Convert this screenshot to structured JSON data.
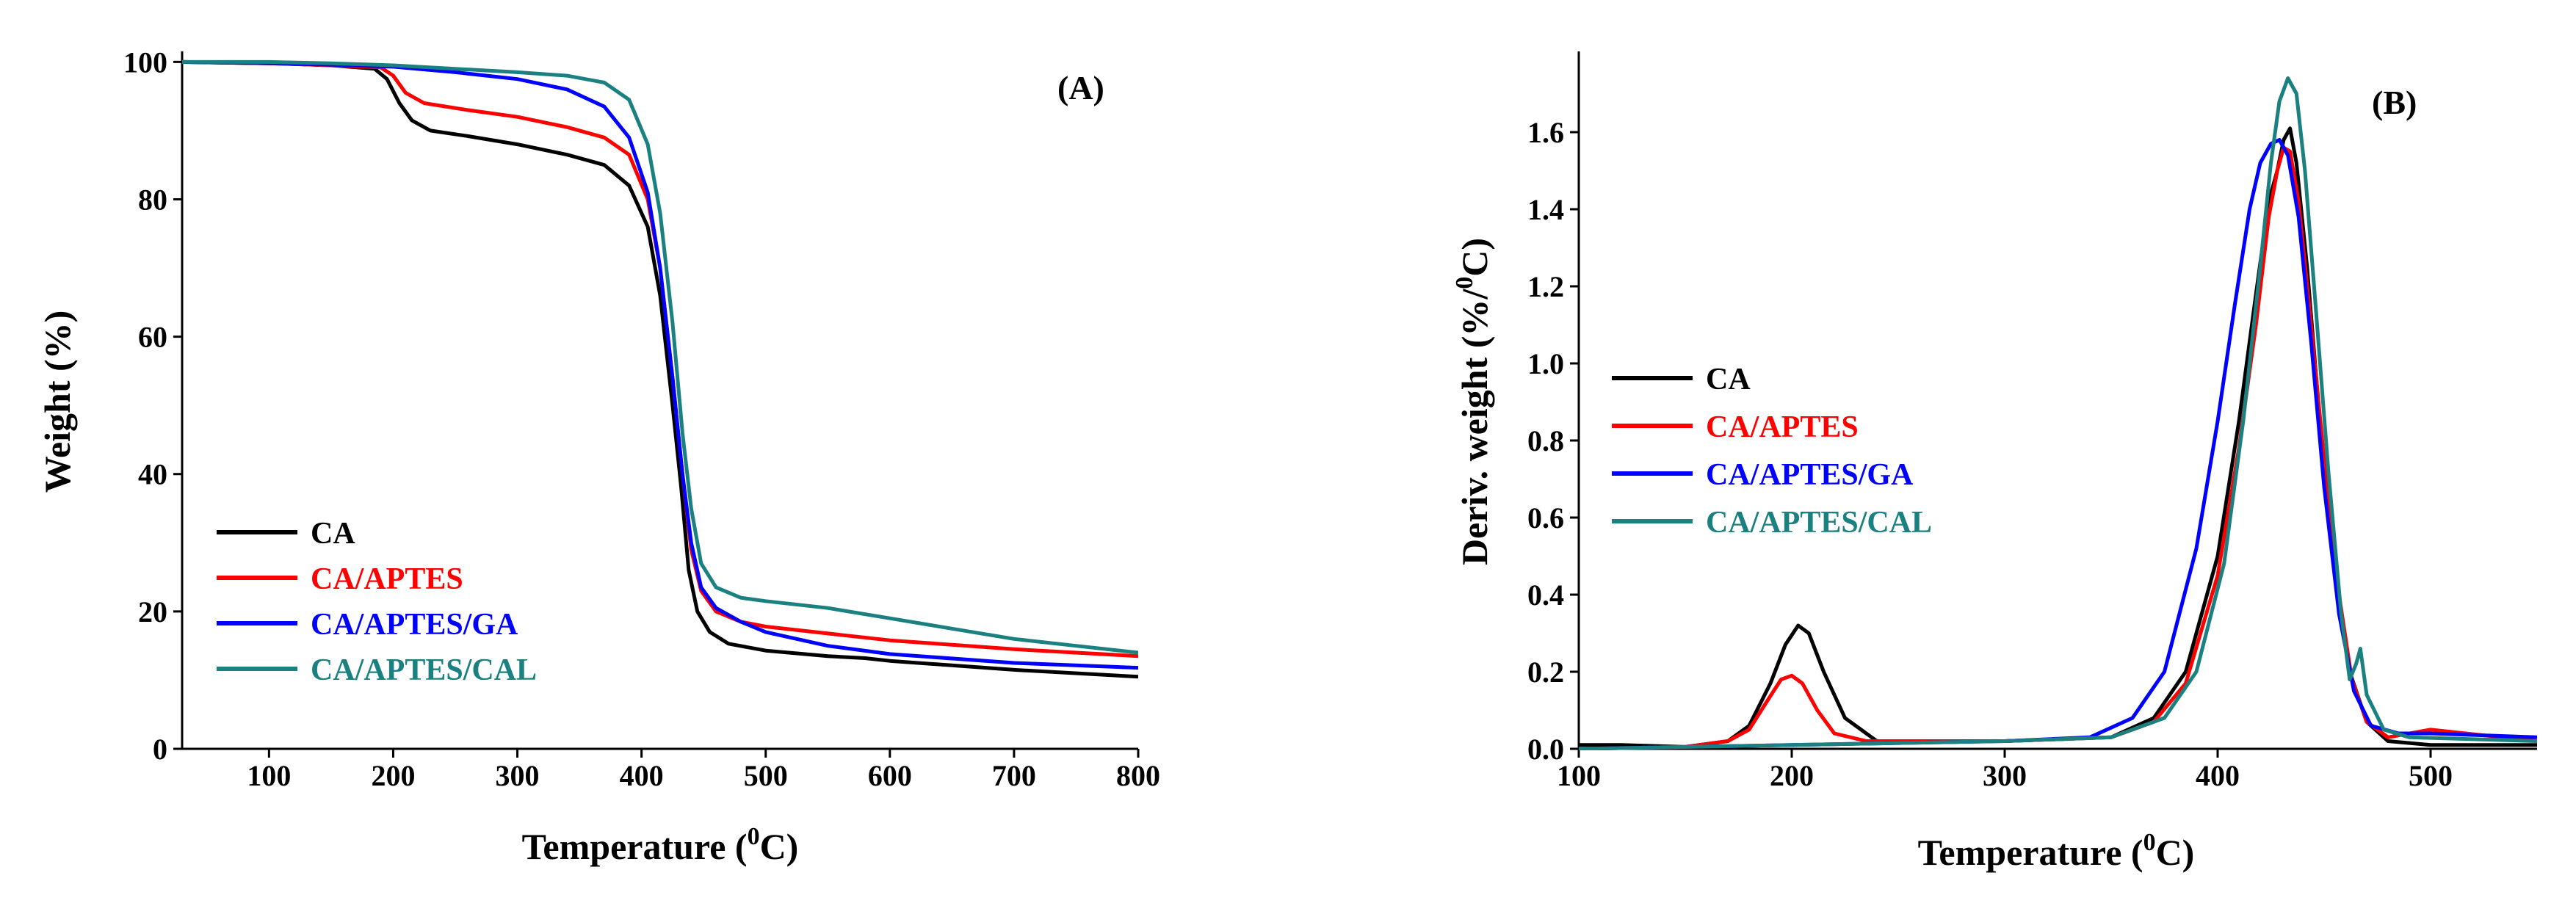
{
  "chart_data": [
    {
      "type": "line",
      "panel_label": "(A)",
      "xlabel": "Temperature (",
      "xlabel_sup": "0",
      "xlabel_suffix": "C)",
      "ylabel": "Weight (%)",
      "xlim": [
        30,
        800
      ],
      "ylim": [
        0,
        101
      ],
      "xticks": [
        100,
        200,
        300,
        400,
        500,
        600,
        700,
        800
      ],
      "yticks": [
        0,
        20,
        40,
        60,
        80,
        100
      ],
      "legend_position": "bottom-left",
      "series": [
        {
          "name": "CA",
          "color": "#000000",
          "points": [
            [
              30,
              100
            ],
            [
              100,
              99.8
            ],
            [
              150,
              99.5
            ],
            [
              185,
              99.0
            ],
            [
              195,
              97.5
            ],
            [
              205,
              94.0
            ],
            [
              215,
              91.5
            ],
            [
              230,
              90.0
            ],
            [
              260,
              89.2
            ],
            [
              300,
              88.0
            ],
            [
              340,
              86.5
            ],
            [
              370,
              85.0
            ],
            [
              390,
              82.0
            ],
            [
              405,
              76.0
            ],
            [
              415,
              66.0
            ],
            [
              425,
              50.0
            ],
            [
              432,
              38.0
            ],
            [
              438,
              26.0
            ],
            [
              445,
              20.0
            ],
            [
              455,
              17.0
            ],
            [
              470,
              15.3
            ],
            [
              500,
              14.3
            ],
            [
              550,
              13.5
            ],
            [
              580,
              13.2
            ],
            [
              600,
              12.8
            ],
            [
              700,
              11.5
            ],
            [
              800,
              10.5
            ]
          ]
        },
        {
          "name": "CA/APTES",
          "color": "#ff0000",
          "points": [
            [
              30,
              100
            ],
            [
              100,
              99.8
            ],
            [
              150,
              99.5
            ],
            [
              190,
              99.2
            ],
            [
              200,
              98.0
            ],
            [
              210,
              95.5
            ],
            [
              225,
              94.0
            ],
            [
              260,
              93.0
            ],
            [
              300,
              92.0
            ],
            [
              340,
              90.5
            ],
            [
              370,
              89.0
            ],
            [
              390,
              86.5
            ],
            [
              405,
              80.0
            ],
            [
              415,
              70.0
            ],
            [
              425,
              54.0
            ],
            [
              433,
              40.0
            ],
            [
              440,
              29.0
            ],
            [
              448,
              23.0
            ],
            [
              460,
              20.0
            ],
            [
              480,
              18.5
            ],
            [
              500,
              17.8
            ],
            [
              600,
              15.8
            ],
            [
              700,
              14.5
            ],
            [
              800,
              13.5
            ]
          ]
        },
        {
          "name": "CA/APTES/GA",
          "color": "#0000ff",
          "points": [
            [
              30,
              100
            ],
            [
              100,
              99.8
            ],
            [
              150,
              99.6
            ],
            [
              200,
              99.3
            ],
            [
              250,
              98.5
            ],
            [
              300,
              97.5
            ],
            [
              340,
              96.0
            ],
            [
              370,
              93.5
            ],
            [
              390,
              89.0
            ],
            [
              405,
              81.0
            ],
            [
              415,
              70.0
            ],
            [
              425,
              54.0
            ],
            [
              433,
              40.0
            ],
            [
              440,
              30.0
            ],
            [
              448,
              23.5
            ],
            [
              460,
              20.5
            ],
            [
              480,
              18.5
            ],
            [
              500,
              17.0
            ],
            [
              550,
              15.0
            ],
            [
              600,
              13.8
            ],
            [
              700,
              12.5
            ],
            [
              800,
              11.8
            ]
          ]
        },
        {
          "name": "CA/APTES/CAL",
          "color": "#1a8080",
          "points": [
            [
              30,
              100
            ],
            [
              100,
              100
            ],
            [
              150,
              99.8
            ],
            [
              200,
              99.5
            ],
            [
              250,
              99.0
            ],
            [
              300,
              98.5
            ],
            [
              340,
              98.0
            ],
            [
              370,
              97.0
            ],
            [
              390,
              94.5
            ],
            [
              405,
              88.0
            ],
            [
              415,
              78.0
            ],
            [
              425,
              62.0
            ],
            [
              433,
              46.0
            ],
            [
              440,
              35.0
            ],
            [
              448,
              27.0
            ],
            [
              460,
              23.5
            ],
            [
              480,
              22.0
            ],
            [
              500,
              21.5
            ],
            [
              550,
              20.5
            ],
            [
              600,
              19.0
            ],
            [
              650,
              17.5
            ],
            [
              700,
              16.0
            ],
            [
              750,
              15.0
            ],
            [
              800,
              14.0
            ]
          ]
        }
      ]
    },
    {
      "type": "line",
      "panel_label": "(B)",
      "xlabel": "Temperature (",
      "xlabel_sup": "0",
      "xlabel_suffix": "C)",
      "ylabel": "Deriv. weight (%/",
      "ylabel_sup": "0",
      "ylabel_suffix": "C)",
      "xlim": [
        100,
        550
      ],
      "ylim": [
        0,
        1.8
      ],
      "xticks": [
        100,
        200,
        300,
        400,
        500
      ],
      "yticks": [
        0.0,
        0.2,
        0.4,
        0.6,
        0.8,
        1.0,
        1.2,
        1.4,
        1.6
      ],
      "ytick_labels": [
        "0.0",
        "0.2",
        "0.4",
        "0.6",
        "0.8",
        "1.0",
        "1.2",
        "1.4",
        "1.6"
      ],
      "legend_position": "middle-left",
      "series": [
        {
          "name": "CA",
          "color": "#000000",
          "points": [
            [
              100,
              0.01
            ],
            [
              120,
              0.01
            ],
            [
              150,
              0.005
            ],
            [
              170,
              0.02
            ],
            [
              180,
              0.06
            ],
            [
              190,
              0.17
            ],
            [
              197,
              0.27
            ],
            [
              203,
              0.32
            ],
            [
              208,
              0.3
            ],
            [
              215,
              0.2
            ],
            [
              225,
              0.08
            ],
            [
              240,
              0.02
            ],
            [
              300,
              0.02
            ],
            [
              350,
              0.03
            ],
            [
              370,
              0.08
            ],
            [
              385,
              0.2
            ],
            [
              400,
              0.5
            ],
            [
              410,
              0.85
            ],
            [
              418,
              1.18
            ],
            [
              424,
              1.42
            ],
            [
              428,
              1.5
            ],
            [
              431,
              1.58
            ],
            [
              434,
              1.61
            ],
            [
              437,
              1.52
            ],
            [
              442,
              1.25
            ],
            [
              448,
              0.85
            ],
            [
              455,
              0.45
            ],
            [
              462,
              0.2
            ],
            [
              470,
              0.07
            ],
            [
              480,
              0.02
            ],
            [
              500,
              0.01
            ],
            [
              550,
              0.01
            ]
          ]
        },
        {
          "name": "CA/APTES",
          "color": "#ff0000",
          "points": [
            [
              100,
              0.0
            ],
            [
              150,
              0.005
            ],
            [
              170,
              0.02
            ],
            [
              180,
              0.05
            ],
            [
              188,
              0.12
            ],
            [
              195,
              0.18
            ],
            [
              200,
              0.19
            ],
            [
              205,
              0.17
            ],
            [
              212,
              0.1
            ],
            [
              220,
              0.04
            ],
            [
              235,
              0.02
            ],
            [
              300,
              0.02
            ],
            [
              350,
              0.03
            ],
            [
              370,
              0.07
            ],
            [
              385,
              0.17
            ],
            [
              400,
              0.45
            ],
            [
              410,
              0.78
            ],
            [
              418,
              1.1
            ],
            [
              424,
              1.38
            ],
            [
              428,
              1.5
            ],
            [
              431,
              1.56
            ],
            [
              434,
              1.55
            ],
            [
              438,
              1.42
            ],
            [
              443,
              1.15
            ],
            [
              450,
              0.75
            ],
            [
              457,
              0.4
            ],
            [
              463,
              0.18
            ],
            [
              470,
              0.07
            ],
            [
              480,
              0.03
            ],
            [
              500,
              0.05
            ],
            [
              550,
              0.02
            ]
          ]
        },
        {
          "name": "CA/APTES/GA",
          "color": "#0000ff",
          "points": [
            [
              100,
              0.0
            ],
            [
              150,
              0.005
            ],
            [
              200,
              0.01
            ],
            [
              250,
              0.015
            ],
            [
              300,
              0.02
            ],
            [
              340,
              0.03
            ],
            [
              360,
              0.08
            ],
            [
              375,
              0.2
            ],
            [
              390,
              0.52
            ],
            [
              400,
              0.85
            ],
            [
              408,
              1.15
            ],
            [
              415,
              1.4
            ],
            [
              420,
              1.52
            ],
            [
              425,
              1.57
            ],
            [
              429,
              1.58
            ],
            [
              433,
              1.54
            ],
            [
              438,
              1.38
            ],
            [
              444,
              1.05
            ],
            [
              450,
              0.68
            ],
            [
              457,
              0.35
            ],
            [
              464,
              0.15
            ],
            [
              472,
              0.06
            ],
            [
              485,
              0.04
            ],
            [
              500,
              0.04
            ],
            [
              550,
              0.03
            ]
          ]
        },
        {
          "name": "CA/APTES/CAL",
          "color": "#1a8080",
          "points": [
            [
              100,
              0.0
            ],
            [
              150,
              0.005
            ],
            [
              200,
              0.01
            ],
            [
              250,
              0.015
            ],
            [
              300,
              0.02
            ],
            [
              350,
              0.03
            ],
            [
              375,
              0.08
            ],
            [
              390,
              0.2
            ],
            [
              403,
              0.48
            ],
            [
              412,
              0.85
            ],
            [
              420,
              1.25
            ],
            [
              425,
              1.52
            ],
            [
              429,
              1.68
            ],
            [
              433,
              1.74
            ],
            [
              437,
              1.7
            ],
            [
              441,
              1.5
            ],
            [
              446,
              1.15
            ],
            [
              452,
              0.72
            ],
            [
              458,
              0.35
            ],
            [
              462,
              0.18
            ],
            [
              465,
              0.22
            ],
            [
              467,
              0.26
            ],
            [
              470,
              0.14
            ],
            [
              478,
              0.05
            ],
            [
              490,
              0.03
            ],
            [
              550,
              0.02
            ]
          ]
        }
      ]
    }
  ]
}
